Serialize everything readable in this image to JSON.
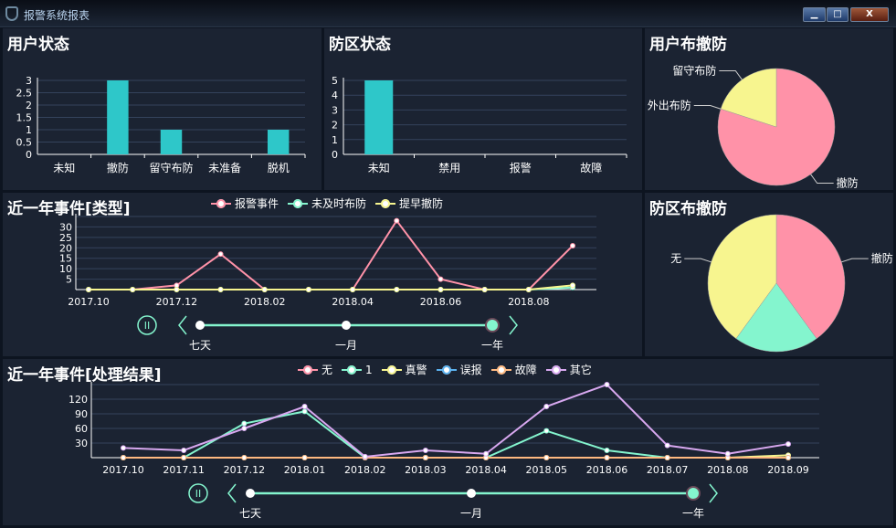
{
  "window": {
    "title": "报警系统报表",
    "buttons": {
      "minimize": "▁",
      "maximize": "□",
      "close": "X"
    }
  },
  "colors": {
    "bar": "#2ec7c9",
    "pink": "#ff92a8",
    "teal": "#84f5ce",
    "yellow": "#f7f58f",
    "blue": "#5ab1ef",
    "orange": "#ffb980",
    "purple": "#d8a8f0",
    "grid": "#34435c",
    "panel": "#1b2332"
  },
  "user_status": {
    "title": "用户状态",
    "chart_data": {
      "type": "bar",
      "categories": [
        "未知",
        "撤防",
        "留守布防",
        "未准备",
        "脱机"
      ],
      "values": [
        0,
        3,
        1,
        0,
        1
      ],
      "yticks": [
        "0",
        "0.5",
        "1",
        "1.5",
        "2",
        "2.5",
        "3"
      ],
      "ylim": [
        0,
        3
      ]
    }
  },
  "zone_status": {
    "title": "防区状态",
    "chart_data": {
      "type": "bar",
      "categories": [
        "未知",
        "禁用",
        "报警",
        "故障"
      ],
      "values": [
        5,
        0,
        0,
        0
      ],
      "yticks": [
        "0",
        "1",
        "2",
        "3",
        "4",
        "5"
      ],
      "ylim": [
        0,
        5
      ]
    }
  },
  "user_arm": {
    "title": "用户布撤防",
    "chart_data": {
      "type": "pie",
      "slices": [
        {
          "name": "撤防",
          "value": 4
        },
        {
          "name": "外出布防",
          "value": 0
        },
        {
          "name": "留守布防",
          "value": 1
        }
      ]
    }
  },
  "zone_arm": {
    "title": "防区布撤防",
    "chart_data": {
      "type": "pie",
      "slices": [
        {
          "name": "撤防",
          "value": 2,
          "label": true
        },
        {
          "name": "",
          "value": 1,
          "label": false
        },
        {
          "name": "无",
          "value": 2,
          "label": true
        }
      ]
    }
  },
  "events_type": {
    "title": "近一年事件[类型]",
    "chart_data": {
      "type": "line",
      "x": [
        "2017.10",
        "2017.11",
        "2017.12",
        "2018.01",
        "2018.02",
        "2018.03",
        "2018.04",
        "2018.05",
        "2018.06",
        "2018.07",
        "2018.08",
        "2018.09"
      ],
      "xtick_labels": [
        "2017.10",
        "2017.12",
        "2018.02",
        "2018.04",
        "2018.06",
        "2018.08"
      ],
      "yticks": [
        "5",
        "10",
        "15",
        "20",
        "25",
        "30"
      ],
      "ylim": [
        0,
        35
      ],
      "series": [
        {
          "name": "报警事件",
          "color": "#ff92a8",
          "values": [
            0,
            0,
            2,
            17,
            0,
            0,
            0,
            33,
            5,
            0,
            0,
            21
          ]
        },
        {
          "name": "未及时布防",
          "color": "#84f5ce",
          "values": [
            0,
            0,
            0,
            0,
            0,
            0,
            0,
            0,
            0,
            0,
            0,
            1
          ]
        },
        {
          "name": "提早撤防",
          "color": "#f7f58f",
          "values": [
            0,
            0,
            0,
            0,
            0,
            0,
            0,
            0,
            0,
            0,
            0,
            2
          ]
        }
      ]
    },
    "timeline": {
      "labels": [
        "七天",
        "一月",
        "一年"
      ],
      "selected": 2
    }
  },
  "events_result": {
    "title": "近一年事件[处理结果]",
    "chart_data": {
      "type": "line",
      "x": [
        "2017.10",
        "2017.11",
        "2017.12",
        "2018.01",
        "2018.02",
        "2018.03",
        "2018.04",
        "2018.05",
        "2018.06",
        "2018.07",
        "2018.08",
        "2018.09"
      ],
      "xtick_labels": [
        "2017.10",
        "2017.11",
        "2017.12",
        "2018.01",
        "2018.02",
        "2018.03",
        "2018.04",
        "2018.05",
        "2018.06",
        "2018.07",
        "2018.08",
        "2018.09"
      ],
      "yticks": [
        "30",
        "60",
        "90",
        "120"
      ],
      "ylim": [
        0,
        150
      ],
      "series": [
        {
          "name": "无",
          "color": "#ff92a8",
          "values": [
            0,
            0,
            0,
            0,
            0,
            0,
            0,
            0,
            0,
            0,
            0,
            0
          ]
        },
        {
          "name": "1",
          "color": "#84f5ce",
          "values": [
            0,
            0,
            70,
            95,
            0,
            0,
            0,
            55,
            15,
            0,
            0,
            0
          ]
        },
        {
          "name": "真警",
          "color": "#f7f58f",
          "values": [
            0,
            0,
            0,
            0,
            0,
            0,
            0,
            0,
            0,
            0,
            0,
            5
          ]
        },
        {
          "name": "误报",
          "color": "#5ab1ef",
          "values": [
            0,
            0,
            0,
            0,
            0,
            0,
            0,
            0,
            0,
            0,
            0,
            0
          ]
        },
        {
          "name": "故障",
          "color": "#ffb980",
          "values": [
            0,
            0,
            0,
            0,
            0,
            0,
            0,
            0,
            0,
            0,
            0,
            0
          ]
        },
        {
          "name": "其它",
          "color": "#d8a8f0",
          "values": [
            20,
            15,
            60,
            105,
            2,
            15,
            8,
            105,
            150,
            25,
            8,
            28
          ]
        }
      ]
    },
    "timeline": {
      "labels": [
        "七天",
        "一月",
        "一年"
      ],
      "selected": 2
    }
  }
}
